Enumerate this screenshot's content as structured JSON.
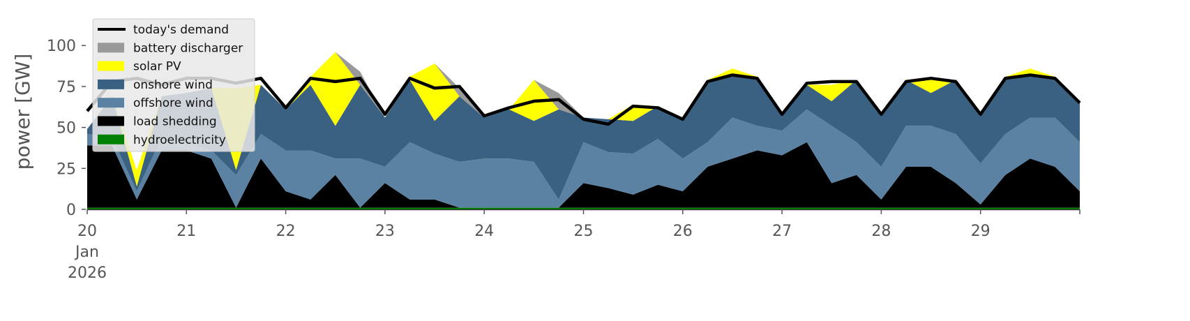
{
  "chart_data": {
    "type": "stacked_area",
    "y_label": "power [GW]",
    "x": [
      20,
      20.25,
      20.5,
      20.75,
      21,
      21.25,
      21.5,
      21.75,
      22,
      22.25,
      22.5,
      22.75,
      23,
      23.25,
      23.5,
      23.75,
      24,
      24.25,
      24.5,
      24.75,
      25,
      25.25,
      25.5,
      25.75,
      26,
      26.25,
      26.5,
      26.75,
      27,
      27.25,
      27.5,
      27.75,
      28,
      28.25,
      28.5,
      28.75,
      29,
      29.25,
      29.5,
      29.75,
      30
    ],
    "xlim": [
      20,
      30
    ],
    "xticks": [
      20,
      21,
      22,
      23,
      24,
      25,
      26,
      27,
      28,
      29
    ],
    "x_date_label": [
      "Jan",
      "2026"
    ],
    "ylim": [
      0,
      115
    ],
    "yticks": [
      0,
      25,
      50,
      75,
      100
    ],
    "series": [
      {
        "name": "hydroelectricity",
        "color": "#008000",
        "values": [
          1,
          1,
          1,
          1,
          1,
          1,
          1,
          1,
          1,
          1,
          1,
          1,
          1,
          1,
          1,
          1,
          1,
          1,
          1,
          1,
          1,
          1,
          1,
          1,
          1,
          1,
          1,
          1,
          1,
          1,
          1,
          1,
          1,
          1,
          1,
          1,
          1,
          1,
          1,
          1,
          1
        ]
      },
      {
        "name": "load shedding",
        "color": "#000000",
        "values": [
          38,
          38,
          5,
          35,
          35,
          30,
          0,
          30,
          10,
          5,
          20,
          0,
          15,
          5,
          5,
          0,
          0,
          0,
          0,
          0,
          15,
          12,
          8,
          14,
          10,
          25,
          30,
          35,
          32,
          40,
          15,
          20,
          5,
          25,
          25,
          15,
          2,
          20,
          30,
          25,
          10
        ]
      },
      {
        "name": "offshore wind",
        "color": "#5b82a3",
        "values": [
          7,
          5,
          5,
          8,
          5,
          5,
          20,
          15,
          25,
          30,
          10,
          30,
          10,
          35,
          28,
          28,
          30,
          30,
          28,
          5,
          25,
          22,
          25,
          28,
          20,
          15,
          25,
          15,
          15,
          20,
          35,
          20,
          20,
          25,
          25,
          30,
          25,
          25,
          25,
          30,
          30
        ]
      },
      {
        "name": "onshore wind",
        "color": "#3b6182",
        "values": [
          3,
          25,
          3,
          25,
          30,
          38,
          3,
          30,
          25,
          40,
          20,
          45,
          30,
          38,
          20,
          40,
          25,
          30,
          25,
          55,
          15,
          20,
          20,
          20,
          25,
          38,
          25,
          30,
          10,
          15,
          15,
          38,
          32,
          28,
          20,
          33,
          30,
          35,
          25,
          25,
          25
        ]
      },
      {
        "name": "solar PV",
        "color": "#ffff00",
        "values": [
          0,
          0,
          10,
          0,
          0,
          0,
          50,
          0,
          0,
          5,
          45,
          0,
          0,
          2,
          35,
          0,
          0,
          0,
          25,
          0,
          0,
          0,
          10,
          0,
          0,
          0,
          5,
          0,
          0,
          0,
          10,
          0,
          0,
          0,
          8,
          0,
          0,
          0,
          5,
          0,
          0
        ]
      },
      {
        "name": "battery discharger",
        "color": "#999999",
        "values": [
          0,
          0,
          0,
          0,
          0,
          0,
          0,
          0,
          0,
          0,
          0,
          8,
          0,
          0,
          0,
          5,
          0,
          0,
          0,
          10,
          0,
          0,
          0,
          0,
          0,
          0,
          0,
          0,
          0,
          0,
          0,
          0,
          0,
          0,
          0,
          0,
          0,
          0,
          0,
          0,
          0
        ]
      }
    ],
    "demand": {
      "name": "today's demand",
      "color": "#000000",
      "values": [
        60,
        78,
        80,
        76,
        80,
        80,
        77,
        80,
        62,
        80,
        78,
        80,
        58,
        80,
        74,
        75,
        57,
        62,
        66,
        67,
        55,
        52,
        63,
        62,
        55,
        78,
        82,
        80,
        58,
        77,
        78,
        78,
        58,
        78,
        80,
        78,
        58,
        80,
        82,
        80,
        65
      ]
    }
  }
}
